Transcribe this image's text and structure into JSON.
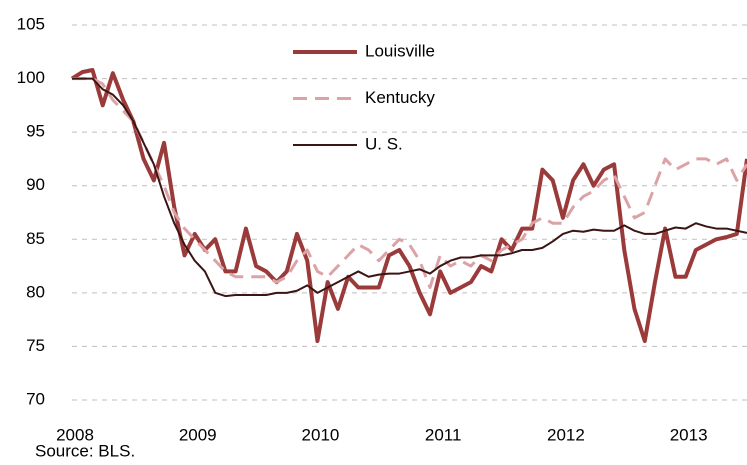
{
  "chart_data": {
    "type": "line",
    "x": [
      2008,
      2008.083,
      2008.167,
      2008.25,
      2008.333,
      2008.417,
      2008.5,
      2008.583,
      2008.667,
      2008.75,
      2008.833,
      2008.917,
      2009,
      2009.083,
      2009.167,
      2009.25,
      2009.333,
      2009.417,
      2009.5,
      2009.583,
      2009.667,
      2009.75,
      2009.833,
      2009.917,
      2010,
      2010.083,
      2010.167,
      2010.25,
      2010.333,
      2010.417,
      2010.5,
      2010.583,
      2010.667,
      2010.75,
      2010.833,
      2010.917,
      2011,
      2011.083,
      2011.167,
      2011.25,
      2011.333,
      2011.417,
      2011.5,
      2011.583,
      2011.667,
      2011.75,
      2011.833,
      2011.917,
      2012,
      2012.083,
      2012.167,
      2012.25,
      2012.333,
      2012.417,
      2012.5,
      2012.583,
      2012.667,
      2012.75,
      2012.833,
      2012.917,
      2013,
      2013.083,
      2013.167,
      2013.25,
      2013.333,
      2013.417,
      2013.5
    ],
    "series": [
      {
        "name": "Louisville",
        "color": "#9b3a3a",
        "width": 4,
        "dashed": false,
        "values": [
          100,
          100.6,
          100.8,
          97.5,
          100.5,
          98,
          96,
          92.5,
          90.5,
          94,
          88,
          83.5,
          85.5,
          84,
          85,
          82,
          82,
          86,
          82.5,
          82,
          81,
          82,
          85.5,
          83,
          75.5,
          81,
          78.5,
          81.5,
          80.5,
          80.5,
          80.5,
          83.5,
          84,
          82.5,
          80,
          78,
          82,
          80,
          80.5,
          81,
          82.5,
          82,
          85,
          84,
          86,
          86,
          91.5,
          90.5,
          87,
          90.5,
          92,
          90,
          91.5,
          92,
          84,
          78.5,
          75.5,
          81,
          86,
          81.5,
          81.5,
          84,
          84.5,
          85,
          85.2,
          85.5,
          92.5
        ]
      },
      {
        "name": "Kentucky",
        "color": "#dba3a6",
        "width": 3,
        "dashed": true,
        "values": [
          100,
          100,
          100,
          99.5,
          98,
          97,
          96,
          94,
          92,
          90,
          87.5,
          86,
          85,
          84,
          83,
          82,
          81.5,
          81.5,
          81.5,
          81.5,
          81,
          81.5,
          83,
          84,
          82,
          81.5,
          82.5,
          83.5,
          84.5,
          84,
          83,
          84,
          85,
          84.5,
          83,
          80.5,
          83.5,
          82.5,
          83,
          82.5,
          83.5,
          83,
          84,
          84.5,
          85,
          86.5,
          87,
          86.5,
          86.5,
          88,
          89,
          89.5,
          90.5,
          91,
          89,
          87,
          87.5,
          90,
          92.5,
          91.5,
          92,
          92.5,
          92.5,
          92,
          92.5,
          90.5,
          92
        ]
      },
      {
        "name": "U. S.",
        "color": "#3b1414",
        "width": 2,
        "dashed": false,
        "values": [
          100,
          100,
          100,
          99,
          98.5,
          97.5,
          96,
          94,
          92,
          89,
          86.5,
          84.5,
          83,
          82,
          80,
          79.7,
          79.8,
          79.8,
          79.8,
          79.8,
          80,
          80,
          80.2,
          80.7,
          80,
          80.5,
          81,
          81.5,
          82,
          81.5,
          81.7,
          81.8,
          81.8,
          82,
          82.2,
          81.8,
          82.5,
          83,
          83.3,
          83.3,
          83.5,
          83.5,
          83.5,
          83.7,
          84,
          84,
          84.2,
          84.8,
          85.5,
          85.8,
          85.7,
          85.9,
          85.8,
          85.8,
          86.3,
          85.8,
          85.5,
          85.5,
          85.8,
          86.1,
          86,
          86.5,
          86.2,
          86,
          86,
          85.8,
          85.6
        ]
      }
    ],
    "xlim": [
      2008,
      2013.5
    ],
    "xticks": [
      2008,
      2009,
      2010,
      2011,
      2012,
      2013
    ],
    "ylim": [
      70,
      105
    ],
    "yticks": [
      70,
      75,
      80,
      85,
      90,
      95,
      100,
      105
    ],
    "grid": true,
    "legend": "top-center",
    "source": "Source: BLS."
  }
}
